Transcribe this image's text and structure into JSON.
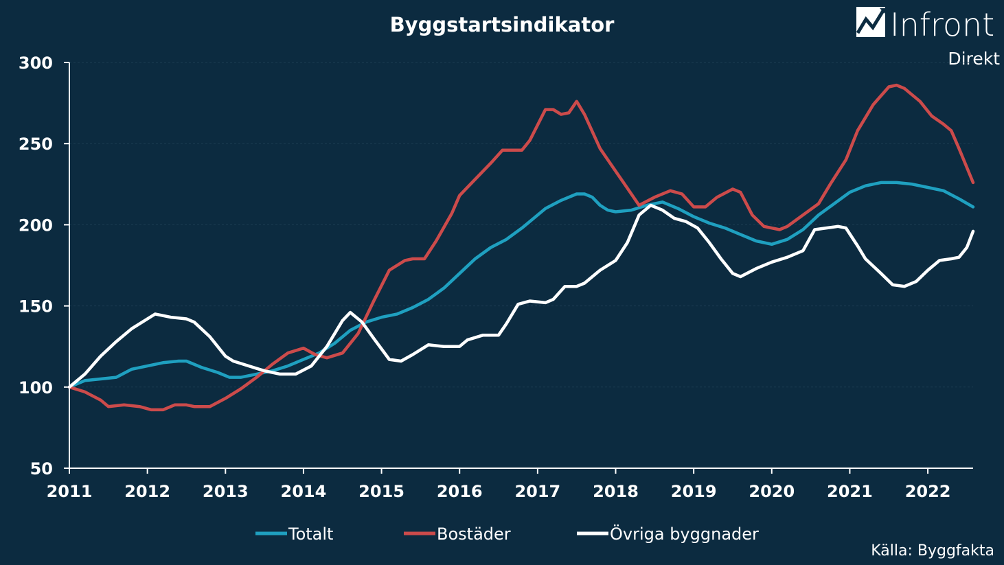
{
  "logo": {
    "name": "Infront",
    "sub": "Direkt"
  },
  "source": "Källa: Byggfakta",
  "chart_data": {
    "type": "line",
    "title": "Byggstartsindikator",
    "xlabel": "",
    "ylabel": "",
    "xlim": [
      2011,
      2022.58
    ],
    "ylim": [
      50,
      300
    ],
    "yticks": [
      50,
      100,
      150,
      200,
      250,
      300
    ],
    "xticks": [
      2011,
      2012,
      2013,
      2014,
      2015,
      2016,
      2017,
      2018,
      2019,
      2020,
      2021,
      2022
    ],
    "grid": true,
    "legend_position": "bottom",
    "series": [
      {
        "name": "Totalt",
        "color": "#1fa0c0",
        "points": [
          [
            2011.0,
            100
          ],
          [
            2011.2,
            104
          ],
          [
            2011.4,
            105
          ],
          [
            2011.6,
            106
          ],
          [
            2011.8,
            111
          ],
          [
            2012.0,
            113
          ],
          [
            2012.2,
            115
          ],
          [
            2012.4,
            116
          ],
          [
            2012.5,
            116
          ],
          [
            2012.7,
            112
          ],
          [
            2012.9,
            109
          ],
          [
            2013.05,
            106
          ],
          [
            2013.2,
            106
          ],
          [
            2013.4,
            108
          ],
          [
            2013.6,
            110
          ],
          [
            2013.8,
            113
          ],
          [
            2014.0,
            117
          ],
          [
            2014.2,
            121
          ],
          [
            2014.4,
            127
          ],
          [
            2014.6,
            135
          ],
          [
            2014.8,
            140
          ],
          [
            2015.0,
            143
          ],
          [
            2015.2,
            145
          ],
          [
            2015.4,
            149
          ],
          [
            2015.6,
            154
          ],
          [
            2015.8,
            161
          ],
          [
            2016.0,
            170
          ],
          [
            2016.2,
            179
          ],
          [
            2016.4,
            186
          ],
          [
            2016.6,
            191
          ],
          [
            2016.8,
            198
          ],
          [
            2017.0,
            206
          ],
          [
            2017.1,
            210
          ],
          [
            2017.3,
            215
          ],
          [
            2017.5,
            219
          ],
          [
            2017.6,
            219
          ],
          [
            2017.7,
            217
          ],
          [
            2017.8,
            212
          ],
          [
            2017.9,
            209
          ],
          [
            2018.0,
            208
          ],
          [
            2018.2,
            209
          ],
          [
            2018.4,
            212
          ],
          [
            2018.6,
            214
          ],
          [
            2018.8,
            210
          ],
          [
            2019.0,
            205
          ],
          [
            2019.2,
            201
          ],
          [
            2019.4,
            198
          ],
          [
            2019.6,
            194
          ],
          [
            2019.8,
            190
          ],
          [
            2020.0,
            188
          ],
          [
            2020.2,
            191
          ],
          [
            2020.4,
            197
          ],
          [
            2020.6,
            206
          ],
          [
            2020.8,
            213
          ],
          [
            2021.0,
            220
          ],
          [
            2021.2,
            224
          ],
          [
            2021.4,
            226
          ],
          [
            2021.6,
            226
          ],
          [
            2021.8,
            225
          ],
          [
            2022.0,
            223
          ],
          [
            2022.2,
            221
          ],
          [
            2022.4,
            216
          ],
          [
            2022.58,
            211
          ]
        ]
      },
      {
        "name": "Bostäder",
        "color": "#cc4b4b",
        "points": [
          [
            2011.0,
            100
          ],
          [
            2011.2,
            97
          ],
          [
            2011.4,
            92
          ],
          [
            2011.5,
            88
          ],
          [
            2011.7,
            89
          ],
          [
            2011.9,
            88
          ],
          [
            2012.05,
            86
          ],
          [
            2012.2,
            86
          ],
          [
            2012.35,
            89
          ],
          [
            2012.5,
            89
          ],
          [
            2012.6,
            88
          ],
          [
            2012.8,
            88
          ],
          [
            2013.0,
            93
          ],
          [
            2013.2,
            99
          ],
          [
            2013.4,
            106
          ],
          [
            2013.6,
            114
          ],
          [
            2013.8,
            121
          ],
          [
            2014.0,
            124
          ],
          [
            2014.15,
            120
          ],
          [
            2014.3,
            118
          ],
          [
            2014.5,
            121
          ],
          [
            2014.7,
            133
          ],
          [
            2014.9,
            153
          ],
          [
            2015.1,
            172
          ],
          [
            2015.3,
            178
          ],
          [
            2015.4,
            179
          ],
          [
            2015.55,
            179
          ],
          [
            2015.7,
            190
          ],
          [
            2015.9,
            207
          ],
          [
            2016.0,
            218
          ],
          [
            2016.2,
            228
          ],
          [
            2016.4,
            238
          ],
          [
            2016.55,
            246
          ],
          [
            2016.7,
            246
          ],
          [
            2016.8,
            246
          ],
          [
            2016.9,
            252
          ],
          [
            2017.1,
            271
          ],
          [
            2017.2,
            271
          ],
          [
            2017.3,
            268
          ],
          [
            2017.4,
            269
          ],
          [
            2017.5,
            276
          ],
          [
            2017.6,
            268
          ],
          [
            2017.8,
            247
          ],
          [
            2018.0,
            233
          ],
          [
            2018.1,
            226
          ],
          [
            2018.3,
            212
          ],
          [
            2018.5,
            217
          ],
          [
            2018.7,
            221
          ],
          [
            2018.85,
            219
          ],
          [
            2019.0,
            211
          ],
          [
            2019.15,
            211
          ],
          [
            2019.3,
            217
          ],
          [
            2019.5,
            222
          ],
          [
            2019.6,
            220
          ],
          [
            2019.75,
            206
          ],
          [
            2019.9,
            199
          ],
          [
            2020.1,
            197
          ],
          [
            2020.2,
            199
          ],
          [
            2020.4,
            206
          ],
          [
            2020.6,
            213
          ],
          [
            2020.75,
            225
          ],
          [
            2020.95,
            240
          ],
          [
            2021.1,
            258
          ],
          [
            2021.3,
            274
          ],
          [
            2021.5,
            285
          ],
          [
            2021.6,
            286
          ],
          [
            2021.7,
            284
          ],
          [
            2021.9,
            276
          ],
          [
            2022.05,
            267
          ],
          [
            2022.2,
            262
          ],
          [
            2022.3,
            258
          ],
          [
            2022.4,
            247
          ],
          [
            2022.58,
            226
          ]
        ]
      },
      {
        "name": "Övriga byggnader",
        "color": "#ffffff",
        "points": [
          [
            2011.0,
            100
          ],
          [
            2011.2,
            108
          ],
          [
            2011.4,
            119
          ],
          [
            2011.6,
            128
          ],
          [
            2011.8,
            136
          ],
          [
            2012.0,
            142
          ],
          [
            2012.1,
            145
          ],
          [
            2012.3,
            143
          ],
          [
            2012.5,
            142
          ],
          [
            2012.6,
            140
          ],
          [
            2012.8,
            131
          ],
          [
            2013.0,
            119
          ],
          [
            2013.1,
            116
          ],
          [
            2013.3,
            113
          ],
          [
            2013.5,
            110
          ],
          [
            2013.7,
            108
          ],
          [
            2013.9,
            108
          ],
          [
            2014.1,
            113
          ],
          [
            2014.3,
            125
          ],
          [
            2014.5,
            141
          ],
          [
            2014.6,
            146
          ],
          [
            2014.75,
            140
          ],
          [
            2014.9,
            130
          ],
          [
            2015.1,
            117
          ],
          [
            2015.25,
            116
          ],
          [
            2015.4,
            120
          ],
          [
            2015.6,
            126
          ],
          [
            2015.8,
            125
          ],
          [
            2016.0,
            125
          ],
          [
            2016.1,
            129
          ],
          [
            2016.3,
            132
          ],
          [
            2016.5,
            132
          ],
          [
            2016.6,
            139
          ],
          [
            2016.75,
            151
          ],
          [
            2016.9,
            153
          ],
          [
            2017.1,
            152
          ],
          [
            2017.2,
            154
          ],
          [
            2017.35,
            162
          ],
          [
            2017.5,
            162
          ],
          [
            2017.6,
            164
          ],
          [
            2017.8,
            172
          ],
          [
            2018.0,
            178
          ],
          [
            2018.15,
            189
          ],
          [
            2018.3,
            206
          ],
          [
            2018.45,
            212
          ],
          [
            2018.6,
            209
          ],
          [
            2018.75,
            204
          ],
          [
            2018.9,
            202
          ],
          [
            2019.05,
            198
          ],
          [
            2019.2,
            189
          ],
          [
            2019.35,
            179
          ],
          [
            2019.5,
            170
          ],
          [
            2019.6,
            168
          ],
          [
            2019.8,
            173
          ],
          [
            2020.0,
            177
          ],
          [
            2020.2,
            180
          ],
          [
            2020.4,
            184
          ],
          [
            2020.55,
            197
          ],
          [
            2020.7,
            198
          ],
          [
            2020.85,
            199
          ],
          [
            2020.95,
            198
          ],
          [
            2021.1,
            187
          ],
          [
            2021.2,
            179
          ],
          [
            2021.4,
            170
          ],
          [
            2021.55,
            163
          ],
          [
            2021.7,
            162
          ],
          [
            2021.85,
            165
          ],
          [
            2022.0,
            172
          ],
          [
            2022.15,
            178
          ],
          [
            2022.3,
            179
          ],
          [
            2022.4,
            180
          ],
          [
            2022.5,
            186
          ],
          [
            2022.58,
            196
          ]
        ]
      }
    ]
  }
}
